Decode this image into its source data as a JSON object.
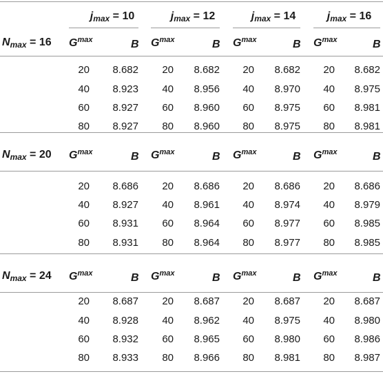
{
  "j_headers": [
    {
      "sym": "j",
      "sub": "max",
      "val": "= 10"
    },
    {
      "sym": "j",
      "sub": "max",
      "val": "= 12"
    },
    {
      "sym": "j",
      "sub": "max",
      "val": "= 14"
    },
    {
      "sym": "j",
      "sub": "max",
      "val": "= 16"
    }
  ],
  "col_labels": {
    "g_sym": "G",
    "g_sup": "max",
    "b": "B"
  },
  "blocks": [
    {
      "n_sym": "N",
      "n_sub": "max",
      "n_val": "= 16",
      "rows": [
        [
          "20",
          "8.682",
          "20",
          "8.682",
          "20",
          "8.682",
          "20",
          "8.682"
        ],
        [
          "40",
          "8.923",
          "40",
          "8.956",
          "40",
          "8.970",
          "40",
          "8.975"
        ],
        [
          "60",
          "8.927",
          "60",
          "8.960",
          "60",
          "8.975",
          "60",
          "8.981"
        ],
        [
          "80",
          "8.927",
          "80",
          "8.960",
          "80",
          "8.975",
          "80",
          "8.981"
        ]
      ]
    },
    {
      "n_sym": "N",
      "n_sub": "max",
      "n_val": "= 20",
      "rows": [
        [
          "20",
          "8.686",
          "20",
          "8.686",
          "20",
          "8.686",
          "20",
          "8.686"
        ],
        [
          "40",
          "8.927",
          "40",
          "8.961",
          "40",
          "8.974",
          "40",
          "8.979"
        ],
        [
          "60",
          "8.931",
          "60",
          "8.964",
          "60",
          "8.977",
          "60",
          "8.985"
        ],
        [
          "80",
          "8.931",
          "80",
          "8.964",
          "80",
          "8.977",
          "80",
          "8.985"
        ]
      ]
    },
    {
      "n_sym": "N",
      "n_sub": "max",
      "n_val": "= 24",
      "rows": [
        [
          "20",
          "8.687",
          "20",
          "8.687",
          "20",
          "8.687",
          "20",
          "8.687"
        ],
        [
          "40",
          "8.928",
          "40",
          "8.962",
          "40",
          "8.975",
          "40",
          "8.980"
        ],
        [
          "60",
          "8.932",
          "60",
          "8.965",
          "60",
          "8.980",
          "60",
          "8.986"
        ],
        [
          "80",
          "8.933",
          "80",
          "8.966",
          "80",
          "8.981",
          "80",
          "8.987"
        ]
      ]
    }
  ]
}
